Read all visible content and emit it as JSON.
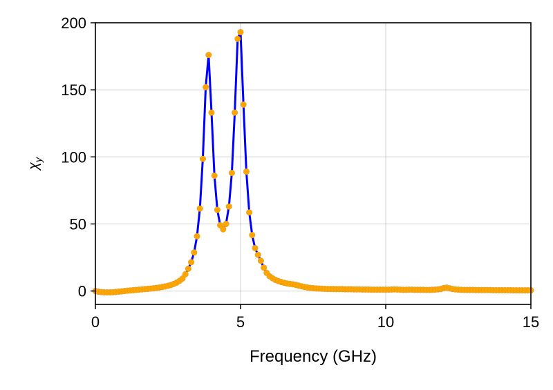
{
  "chart_data": {
    "type": "line",
    "title": "",
    "xlabel": "Frequency (GHz)",
    "ylabel": "χ",
    "ylabel_subscript": "y",
    "xlim": [
      0,
      15
    ],
    "ylim": [
      -10,
      200
    ],
    "xticks": [
      0,
      5,
      10,
      15
    ],
    "yticks": [
      0,
      50,
      100,
      150,
      200
    ],
    "grid": true,
    "line_color": "#0000ff",
    "marker_color": "#ffa500",
    "x_start": 0,
    "x_step": 0.1,
    "values": [
      0,
      -0.5,
      -0.8,
      -1,
      -1,
      -1,
      -0.9,
      -0.7,
      -0.5,
      -0.3,
      0,
      0.2,
      0.4,
      0.6,
      0.8,
      1.0,
      1.2,
      1.4,
      1.6,
      1.8,
      2.0,
      2.3,
      2.6,
      3.0,
      3.4,
      3.9,
      4.5,
      5.3,
      6.3,
      7.6,
      9.3,
      12.5,
      16.6,
      21.5,
      28.7,
      40.8,
      61.5,
      98.5,
      152,
      176,
      133,
      86,
      60.5,
      49,
      46,
      50,
      63,
      88,
      133,
      188,
      193,
      139,
      89,
      58.6,
      41.7,
      32,
      27,
      22.5,
      17.4,
      13.5,
      11,
      9.5,
      8.3,
      7.4,
      6.7,
      6.1,
      5.6,
      5.3,
      5.0,
      4.6,
      4.0,
      3.5,
      3.0,
      2.6,
      2.3,
      2.1,
      1.9,
      1.8,
      1.7,
      1.6,
      1.5,
      1.5,
      1.5,
      1.4,
      1.4,
      1.4,
      1.3,
      1.3,
      1.3,
      1.2,
      1.2,
      1.2,
      1.1,
      1.1,
      1.1,
      1.0,
      1.0,
      1.0,
      1.0,
      1.0,
      1.0,
      1.0,
      1.1,
      1.2,
      1.1,
      1.0,
      0.9,
      0.9,
      1.0,
      1.0,
      0.9,
      0.9,
      0.9,
      0.9,
      0.8,
      0.8,
      0.9,
      1.0,
      1.2,
      1.5,
      2.2,
      2.5,
      2.0,
      1.5,
      1.2,
      1.0,
      0.9,
      0.8,
      0.8,
      0.8,
      0.8,
      0.7,
      0.7,
      0.7,
      0.7,
      0.7,
      0.7,
      0.6,
      0.6,
      0.6,
      0.6,
      0.6,
      0.6,
      0.6,
      0.5,
      0.5,
      0.5,
      0.5,
      0.5,
      0.5,
      0.5
    ]
  }
}
